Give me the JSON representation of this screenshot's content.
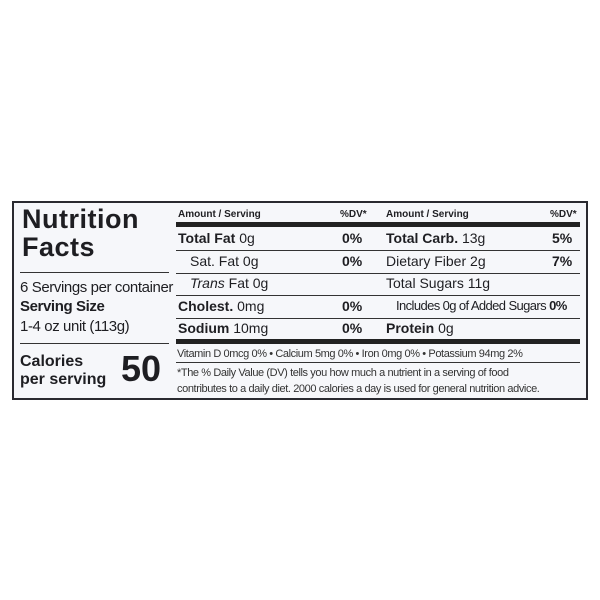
{
  "title": [
    "Nutrition",
    "Facts"
  ],
  "servings_per_container": "6 Servings per container",
  "serving_size_label": "Serving Size",
  "serving_size_value": "1-4 oz unit (113g)",
  "calories_label": [
    "Calories",
    "per serving"
  ],
  "calories_value": "50",
  "headers": {
    "amount": "Amount / Serving",
    "dv": "%DV*"
  },
  "left_rows": [
    {
      "name": "Total Fat",
      "amount": "0g",
      "dv": "0%"
    },
    {
      "name": "Sat. Fat",
      "amount": "0g",
      "dv": "0%"
    },
    {
      "name": "Trans",
      "rest": "Fat 0g",
      "dv": ""
    },
    {
      "name": "Cholest.",
      "amount": "0mg",
      "dv": "0%"
    },
    {
      "name": "Sodium",
      "amount": "10mg",
      "dv": "0%"
    }
  ],
  "right_rows": [
    {
      "name": "Total Carb.",
      "amount": "13g",
      "dv": "5%"
    },
    {
      "name": "Dietary Fiber",
      "amount": "2g",
      "dv": "7%"
    },
    {
      "name": "Total Sugars",
      "amount": "11g",
      "dv": ""
    },
    {
      "name": "Includes 0g of Added Sugars",
      "amount": "",
      "dv": "0%"
    },
    {
      "name": "Protein",
      "amount": "0g",
      "dv": ""
    }
  ],
  "vitamins": "Vitamin D 0mcg  0%  •  Calcium 5mg  0%  •  Iron 0mg 0%  •  Potassium 94mg  2%",
  "footnote": [
    "*The % Daily Value (DV) tells you how much a nutrient in a serving of  food",
    "contributes to a daily diet. 2000 calories a day is used for general nutrition advice."
  ]
}
